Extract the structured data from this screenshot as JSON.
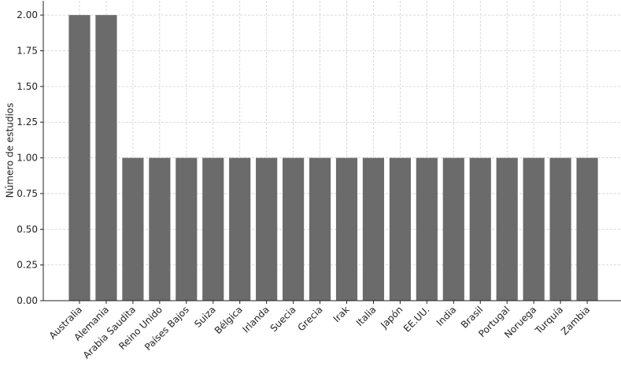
{
  "chart_data": {
    "type": "bar",
    "y_label": "Número de estudios",
    "categories": [
      "Australia",
      "Alemania",
      "Arabia Saudita",
      "Reino Unido",
      "Países Bajos",
      "Suiza",
      "Bélgica",
      "Irlanda",
      "Suecia",
      "Grecia",
      "Irak",
      "Italia",
      "Japón",
      "EE.UU.",
      "India",
      "Brasil",
      "Portugal",
      "Noruega",
      "Turquía",
      "Zambia"
    ],
    "values": [
      2,
      2,
      1,
      1,
      1,
      1,
      1,
      1,
      1,
      1,
      1,
      1,
      1,
      1,
      1,
      1,
      1,
      1,
      1,
      1
    ],
    "color": "#6b6b6b",
    "ylim": [
      0,
      2.1
    ],
    "yticks": [
      {
        "value": 0,
        "label": "0.00"
      },
      {
        "value": 0.25,
        "label": "0.25"
      },
      {
        "value": 0.5,
        "label": "0.50"
      },
      {
        "value": 0.75,
        "label": "0.75"
      },
      {
        "value": 1,
        "label": "1.00"
      },
      {
        "value": 1.25,
        "label": "1.25"
      },
      {
        "value": 1.5,
        "label": "1.50"
      },
      {
        "value": 1.75,
        "label": "1.75"
      },
      {
        "value": 2,
        "label": "2.00"
      }
    ],
    "grid": true
  }
}
